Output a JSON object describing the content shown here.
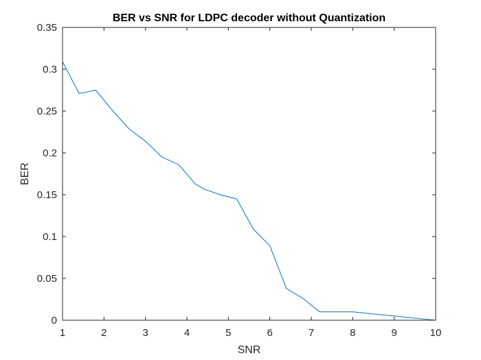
{
  "chart_data": {
    "type": "line",
    "title": "BER vs SNR for LDPC decoder without Quantization",
    "xlabel": "SNR",
    "ylabel": "BER",
    "xlim": [
      1,
      10
    ],
    "ylim": [
      0,
      0.35
    ],
    "xticks": [
      1,
      2,
      3,
      4,
      5,
      6,
      7,
      8,
      9,
      10
    ],
    "xtick_labels": [
      "1",
      "2",
      "3",
      "4",
      "5",
      "6",
      "7",
      "8",
      "9",
      "10"
    ],
    "yticks": [
      0,
      0.05,
      0.1,
      0.15,
      0.2,
      0.25,
      0.3,
      0.35
    ],
    "ytick_labels": [
      "0",
      "0.05",
      "0.1",
      "0.15",
      "0.2",
      "0.25",
      "0.3",
      "0.35"
    ],
    "grid": false,
    "series": [
      {
        "color": "#0072BD",
        "x": [
          1,
          1.4,
          1.8,
          2.2,
          2.6,
          3.0,
          3.4,
          3.8,
          4.2,
          4.4,
          4.8,
          5.2,
          5.6,
          6.0,
          6.4,
          6.8,
          7.2,
          7.6,
          8.0,
          8.4,
          8.8,
          9.2,
          9.6,
          10
        ],
        "y": [
          0.309,
          0.271,
          0.275,
          0.251,
          0.229,
          0.214,
          0.195,
          0.186,
          0.163,
          0.157,
          0.15,
          0.145,
          0.109,
          0.089,
          0.038,
          0.026,
          0.01,
          0.01,
          0.01,
          0.008,
          0.006,
          0.004,
          0.002,
          0.0
        ]
      }
    ]
  }
}
